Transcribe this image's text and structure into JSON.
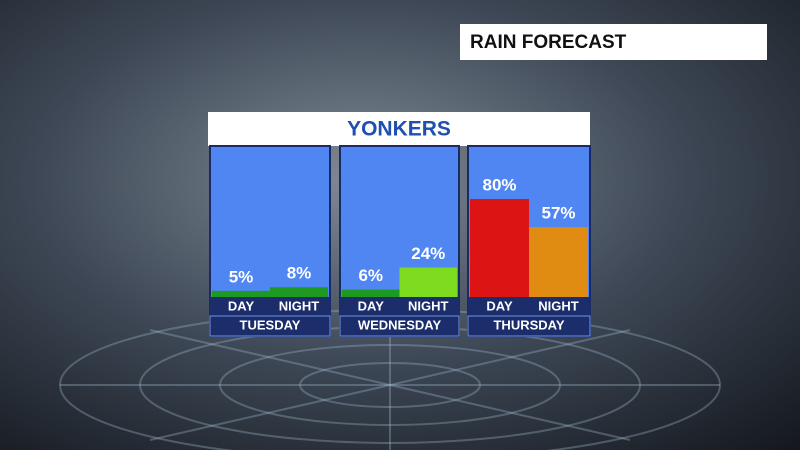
{
  "chart_data": {
    "type": "bar",
    "title": "RAIN FORECAST",
    "subtitle": "YONKERS",
    "groups": [
      {
        "name": "TUESDAY",
        "categories": [
          "DAY",
          "NIGHT"
        ],
        "values": [
          5,
          8
        ],
        "value_labels": [
          "5%",
          "8%"
        ],
        "colors": [
          "#1e9a22",
          "#1e9a22"
        ]
      },
      {
        "name": "WEDNESDAY",
        "categories": [
          "DAY",
          "NIGHT"
        ],
        "values": [
          6,
          24
        ],
        "value_labels": [
          "6%",
          "24%"
        ],
        "colors": [
          "#1e9a22",
          "#7ddc1f"
        ]
      },
      {
        "name": "THURSDAY",
        "categories": [
          "DAY",
          "NIGHT"
        ],
        "values": [
          80,
          57
        ],
        "value_labels": [
          "80%",
          "57%"
        ],
        "colors": [
          "#dd1414",
          "#e08c12"
        ]
      }
    ]
  }
}
